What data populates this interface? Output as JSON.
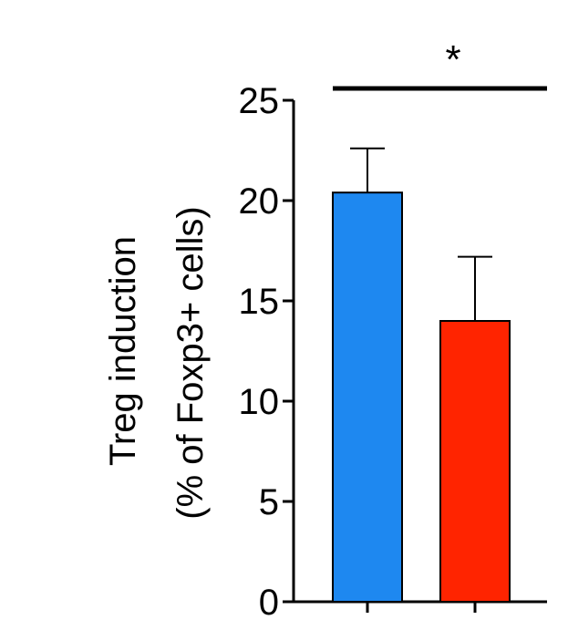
{
  "chart_data": {
    "type": "bar",
    "categories": [
      "",
      ""
    ],
    "values": [
      20.4,
      14.0
    ],
    "errors": [
      2.2,
      3.2
    ],
    "colors": [
      "#1E88F0",
      "#FF2400"
    ],
    "ylabel_line1": "Treg induction",
    "ylabel_line2": "(% of Foxp3+ cells)",
    "ylim": [
      0,
      25
    ],
    "yticks": [
      0,
      5,
      10,
      15,
      20,
      25
    ],
    "significance": "*",
    "grid": false
  }
}
